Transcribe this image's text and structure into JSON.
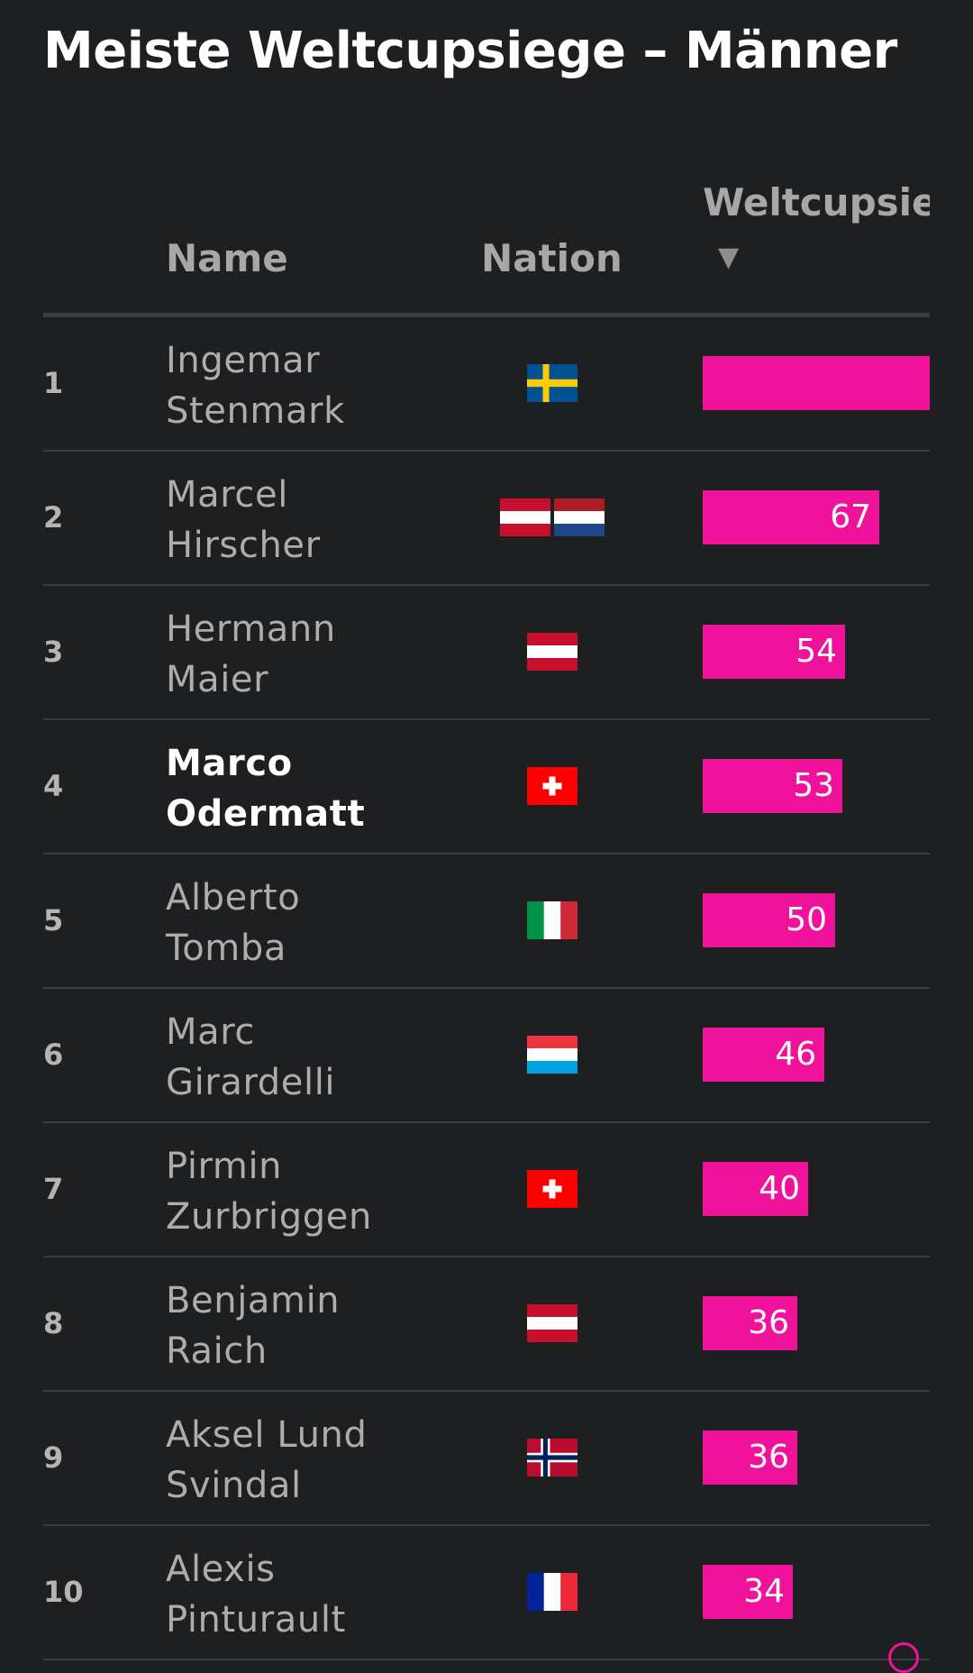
{
  "title": "Meiste Weltcupsiege – Männer",
  "columns": {
    "name": "Name",
    "nation": "Nation",
    "value": "Weltcupsiege",
    "sort_icon": "▼"
  },
  "colors": {
    "background": "#1e1f21",
    "bar": "#f0129b",
    "text": "#aaaaaa",
    "highlight": "#ffffff"
  },
  "chart_data": {
    "type": "bar",
    "orientation": "horizontal",
    "title": "Meiste Weltcupsiege – Männer",
    "categories": [
      "Ingemar Stenmark",
      "Marcel Hirscher",
      "Hermann Maier",
      "Marco Odermatt",
      "Alberto Tomba",
      "Marc Girardelli",
      "Pirmin Zurbriggen",
      "Benjamin Raich",
      "Aksel Lund Svindal",
      "Alexis Pinturault"
    ],
    "values": [
      86,
      67,
      54,
      53,
      50,
      46,
      40,
      36,
      36,
      34
    ],
    "xlim": [
      0,
      86
    ]
  },
  "rows": [
    {
      "rank": "1",
      "name1": "Ingemar",
      "name2": "Stenmark",
      "value": 86,
      "label": "",
      "flags": [
        "sweden-flag"
      ],
      "bold": false
    },
    {
      "rank": "2",
      "name1": "Marcel",
      "name2": "Hirscher",
      "value": 67,
      "label": "67",
      "flags": [
        "austria-flag",
        "netherlands-flag"
      ],
      "bold": false
    },
    {
      "rank": "3",
      "name1": "Hermann",
      "name2": "Maier",
      "value": 54,
      "label": "54",
      "flags": [
        "austria-flag"
      ],
      "bold": false
    },
    {
      "rank": "4",
      "name1": "Marco",
      "name2": "Odermatt",
      "value": 53,
      "label": "53",
      "flags": [
        "switzerland-flag"
      ],
      "bold": true
    },
    {
      "rank": "5",
      "name1": "Alberto",
      "name2": "Tomba",
      "value": 50,
      "label": "50",
      "flags": [
        "italy-flag"
      ],
      "bold": false
    },
    {
      "rank": "6",
      "name1": "Marc",
      "name2": "Girardelli",
      "value": 46,
      "label": "46",
      "flags": [
        "luxembourg-flag"
      ],
      "bold": false
    },
    {
      "rank": "7",
      "name1": "Pirmin",
      "name2": "Zurbriggen",
      "value": 40,
      "label": "40",
      "flags": [
        "switzerland-flag"
      ],
      "bold": false
    },
    {
      "rank": "8",
      "name1": "Benjamin",
      "name2": "Raich",
      "value": 36,
      "label": "36",
      "flags": [
        "austria-flag"
      ],
      "bold": false
    },
    {
      "rank": "9",
      "name1": "Aksel Lund",
      "name2": "Svindal",
      "value": 36,
      "label": "36",
      "flags": [
        "norway-flag"
      ],
      "bold": false
    },
    {
      "rank": "10",
      "name1": "Alexis",
      "name2": "Pinturault",
      "value": 34,
      "label": "34",
      "flags": [
        "france-flag"
      ],
      "bold": false
    }
  ]
}
